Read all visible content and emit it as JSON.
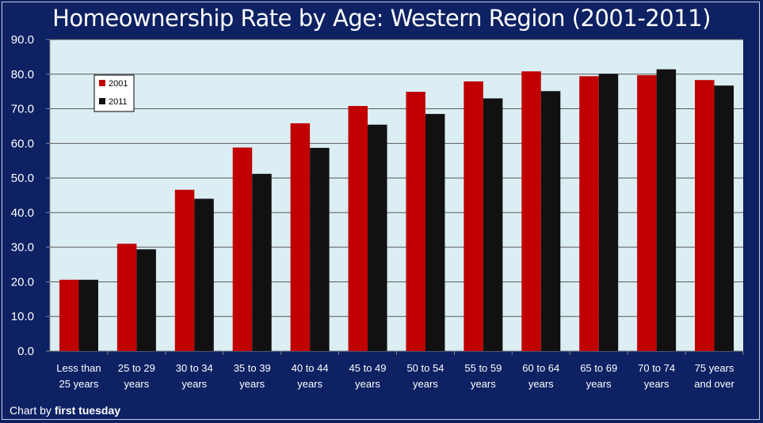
{
  "credit": {
    "prefix": "Chart by ",
    "brand": "first tuesday"
  },
  "chart_data": {
    "type": "bar",
    "title": "Homeownership Rate by Age: Western Region (2001-2011)",
    "categories": [
      [
        "Less than",
        "25 years"
      ],
      [
        "25 to 29",
        "years"
      ],
      [
        "30 to 34",
        "years"
      ],
      [
        "35 to 39",
        "years"
      ],
      [
        "40 to 44",
        "years"
      ],
      [
        "45 to 49",
        "years"
      ],
      [
        "50 to 54",
        "years"
      ],
      [
        "55 to 59",
        "years"
      ],
      [
        "60 to 64",
        "years"
      ],
      [
        "65 to 69",
        "years"
      ],
      [
        "70 to 74",
        "years"
      ],
      [
        "75 years",
        "and over"
      ]
    ],
    "series": [
      {
        "name": "2001",
        "color": "#c00000",
        "values": [
          20.6,
          31.0,
          46.6,
          58.8,
          65.8,
          70.8,
          74.9,
          77.9,
          80.8,
          79.4,
          79.7,
          78.3
        ]
      },
      {
        "name": "2011",
        "color": "#111111",
        "values": [
          20.6,
          29.4,
          44.0,
          51.2,
          58.7,
          65.4,
          68.5,
          73.0,
          75.1,
          80.1,
          81.4,
          76.7
        ]
      }
    ],
    "ylim": [
      0,
      90
    ],
    "yticks": [
      "0.0",
      "10.0",
      "20.0",
      "30.0",
      "40.0",
      "50.0",
      "60.0",
      "70.0",
      "80.0",
      "90.0"
    ],
    "grid": true,
    "legend_position": "top-left",
    "colors": {
      "background": "#0d2163",
      "plot_area": "#dbeef4",
      "grid": "#5a5a5a"
    }
  }
}
